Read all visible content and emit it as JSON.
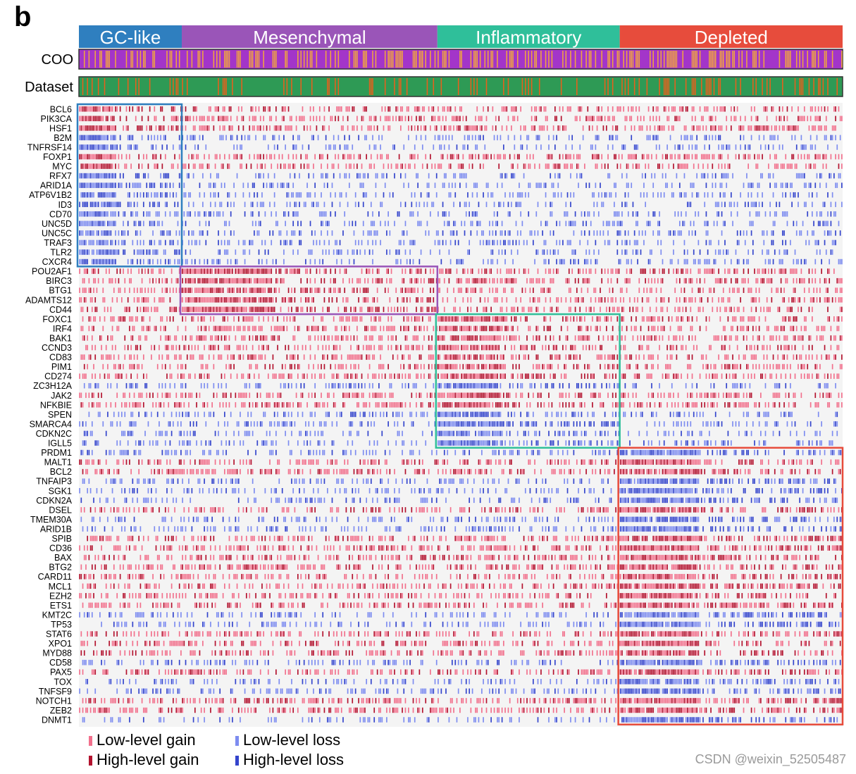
{
  "panel_label": "b",
  "watermark": "CSDN @weixin_52505487",
  "colors": {
    "low_gain": "#f2708c",
    "high_gain": "#b3122e",
    "low_loss": "#7d8cf0",
    "high_loss": "#3344cc",
    "coo_a": "#a335c9",
    "coo_b": "#f0a540",
    "dataset_a": "#2e9a55",
    "dataset_b": "#e8601c",
    "background": "#f4f4f4"
  },
  "chart_data": {
    "type": "heatmap",
    "note_colors_by_value": {
      "1": "low_gain",
      "2": "high_gain",
      "-1": "low_loss",
      "-2": "high_loss"
    },
    "clusters": [
      {
        "name": "GC-like",
        "color": "#2f7fbf",
        "n_samples": 66
      },
      {
        "name": "Mesenchymal",
        "color": "#9a55b8",
        "n_samples": 164
      },
      {
        "name": "Inflammatory",
        "color": "#2fbf9a",
        "n_samples": 117
      },
      {
        "name": "Depleted",
        "color": "#e74c3c",
        "n_samples": 143
      }
    ],
    "annotation_rows": [
      "COO",
      "Dataset"
    ],
    "genes": [
      {
        "name": "BCL6",
        "type": "gain",
        "signature": 0
      },
      {
        "name": "PIK3CA",
        "type": "gain",
        "signature": 0
      },
      {
        "name": "HSF1",
        "type": "gain",
        "signature": 0
      },
      {
        "name": "B2M",
        "type": "loss",
        "signature": 0
      },
      {
        "name": "TNFRSF14",
        "type": "loss",
        "signature": 0
      },
      {
        "name": "FOXP1",
        "type": "gain",
        "signature": 0
      },
      {
        "name": "MYC",
        "type": "gain",
        "signature": 0
      },
      {
        "name": "RFX7",
        "type": "loss",
        "signature": 0
      },
      {
        "name": "ARID1A",
        "type": "loss",
        "signature": 0
      },
      {
        "name": "ATP6V1B2",
        "type": "loss",
        "signature": 0
      },
      {
        "name": "ID3",
        "type": "loss",
        "signature": 0
      },
      {
        "name": "CD70",
        "type": "loss",
        "signature": 0
      },
      {
        "name": "UNC5D",
        "type": "loss",
        "signature": 0
      },
      {
        "name": "UNC5C",
        "type": "loss",
        "signature": 0
      },
      {
        "name": "TRAF3",
        "type": "loss",
        "signature": 0
      },
      {
        "name": "TLR2",
        "type": "loss",
        "signature": 0
      },
      {
        "name": "CXCR4",
        "type": "loss",
        "signature": 0
      },
      {
        "name": "POU2AF1",
        "type": "gain",
        "signature": 1
      },
      {
        "name": "BIRC3",
        "type": "gain",
        "signature": 1
      },
      {
        "name": "BTG1",
        "type": "gain",
        "signature": 1
      },
      {
        "name": "ADAMTS12",
        "type": "gain",
        "signature": 1
      },
      {
        "name": "CD44",
        "type": "gain",
        "signature": 1
      },
      {
        "name": "FOXC1",
        "type": "gain",
        "signature": 2
      },
      {
        "name": "IRF4",
        "type": "gain",
        "signature": 2
      },
      {
        "name": "BAK1",
        "type": "gain",
        "signature": 2
      },
      {
        "name": "CCND3",
        "type": "gain",
        "signature": 2
      },
      {
        "name": "CD83",
        "type": "gain",
        "signature": 2
      },
      {
        "name": "PIM1",
        "type": "gain",
        "signature": 2
      },
      {
        "name": "CD274",
        "type": "gain",
        "signature": 2
      },
      {
        "name": "ZC3H12A",
        "type": "loss",
        "signature": 2
      },
      {
        "name": "JAK2",
        "type": "gain",
        "signature": 2
      },
      {
        "name": "NFKBIE",
        "type": "gain",
        "signature": 2
      },
      {
        "name": "SPEN",
        "type": "loss",
        "signature": 2
      },
      {
        "name": "SMARCA4",
        "type": "loss",
        "signature": 2
      },
      {
        "name": "CDKN2C",
        "type": "loss",
        "signature": 2
      },
      {
        "name": "IGLL5",
        "type": "loss",
        "signature": 2
      },
      {
        "name": "PRDM1",
        "type": "loss",
        "signature": 3
      },
      {
        "name": "MALT1",
        "type": "gain",
        "signature": 3
      },
      {
        "name": "BCL2",
        "type": "gain",
        "signature": 3
      },
      {
        "name": "TNFAIP3",
        "type": "loss",
        "signature": 3
      },
      {
        "name": "SGK1",
        "type": "loss",
        "signature": 3
      },
      {
        "name": "CDKN2A",
        "type": "loss",
        "signature": 3
      },
      {
        "name": "DSEL",
        "type": "gain",
        "signature": 3
      },
      {
        "name": "TMEM30A",
        "type": "loss",
        "signature": 3
      },
      {
        "name": "ARID1B",
        "type": "loss",
        "signature": 3
      },
      {
        "name": "SPIB",
        "type": "gain",
        "signature": 3
      },
      {
        "name": "CD36",
        "type": "gain",
        "signature": 3
      },
      {
        "name": "BAX",
        "type": "gain",
        "signature": 3
      },
      {
        "name": "BTG2",
        "type": "gain",
        "signature": 3
      },
      {
        "name": "CARD11",
        "type": "gain",
        "signature": 3
      },
      {
        "name": "MCL1",
        "type": "gain",
        "signature": 3
      },
      {
        "name": "EZH2",
        "type": "gain",
        "signature": 3
      },
      {
        "name": "ETS1",
        "type": "gain",
        "signature": 3
      },
      {
        "name": "KMT2C",
        "type": "loss",
        "signature": 3
      },
      {
        "name": "TP53",
        "type": "loss",
        "signature": 3
      },
      {
        "name": "STAT6",
        "type": "gain",
        "signature": 3
      },
      {
        "name": "XPO1",
        "type": "gain",
        "signature": 3
      },
      {
        "name": "MYD88",
        "type": "gain",
        "signature": 3
      },
      {
        "name": "CD58",
        "type": "loss",
        "signature": 3
      },
      {
        "name": "PAX5",
        "type": "gain",
        "signature": 3
      },
      {
        "name": "TOX",
        "type": "loss",
        "signature": 3
      },
      {
        "name": "TNFSF9",
        "type": "loss",
        "signature": 3
      },
      {
        "name": "NOTCH1",
        "type": "gain",
        "signature": 3
      },
      {
        "name": "ZEB2",
        "type": "gain",
        "signature": 3
      },
      {
        "name": "DNMT1",
        "type": "loss",
        "signature": 3
      }
    ],
    "legend": [
      {
        "label": "Low-level gain",
        "color_key": "low_gain"
      },
      {
        "label": "High-level gain",
        "color_key": "high_gain"
      },
      {
        "label": "Low-level loss",
        "color_key": "low_loss"
      },
      {
        "label": "High-level loss",
        "color_key": "high_loss"
      }
    ]
  }
}
